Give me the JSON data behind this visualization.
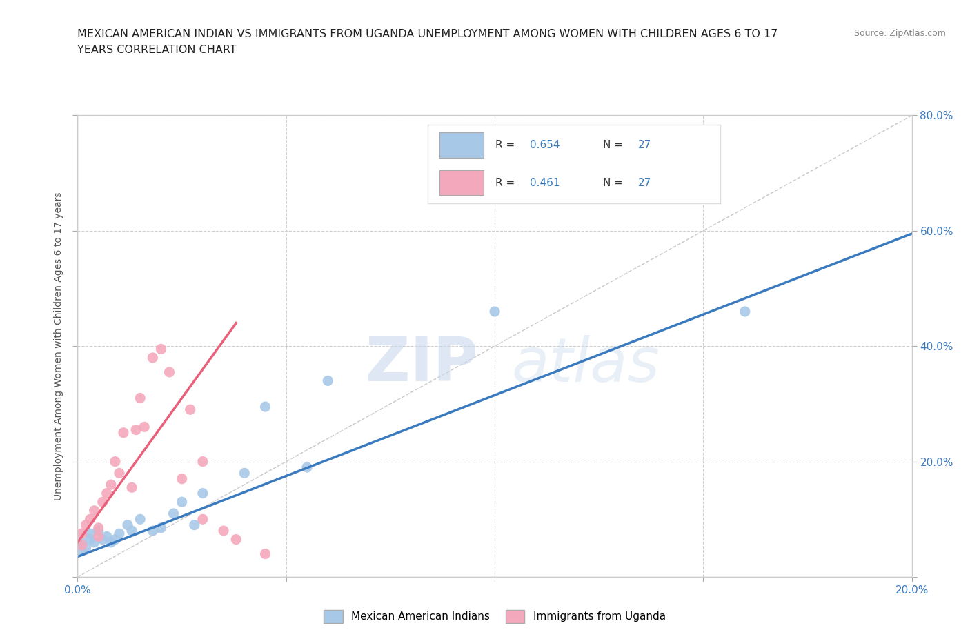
{
  "title_line1": "MEXICAN AMERICAN INDIAN VS IMMIGRANTS FROM UGANDA UNEMPLOYMENT AMONG WOMEN WITH CHILDREN AGES 6 TO 17",
  "title_line2": "YEARS CORRELATION CHART",
  "source": "Source: ZipAtlas.com",
  "ylabel": "Unemployment Among Women with Children Ages 6 to 17 years",
  "xlim": [
    0.0,
    0.2
  ],
  "ylim": [
    0.0,
    0.8
  ],
  "xticks": [
    0.0,
    0.05,
    0.1,
    0.15,
    0.2
  ],
  "yticks": [
    0.0,
    0.2,
    0.4,
    0.6,
    0.8
  ],
  "blue_color": "#a8c8e8",
  "pink_color": "#f4a8bc",
  "blue_line_color": "#3a7abf",
  "pink_line_color": "#e8607a",
  "blue_R": 0.654,
  "pink_R": 0.461,
  "blue_N": 27,
  "pink_N": 27,
  "watermark_zip": "ZIP",
  "watermark_atlas": "atlas",
  "legend_label_blue": "Mexican American Indians",
  "legend_label_pink": "Immigrants from Uganda",
  "blue_scatter_x": [
    0.001,
    0.001,
    0.002,
    0.003,
    0.003,
    0.004,
    0.005,
    0.006,
    0.007,
    0.008,
    0.009,
    0.01,
    0.012,
    0.013,
    0.015,
    0.018,
    0.02,
    0.023,
    0.025,
    0.028,
    0.03,
    0.04,
    0.045,
    0.055,
    0.06,
    0.1,
    0.16
  ],
  "blue_scatter_y": [
    0.045,
    0.06,
    0.05,
    0.065,
    0.075,
    0.06,
    0.08,
    0.065,
    0.07,
    0.06,
    0.065,
    0.075,
    0.09,
    0.08,
    0.1,
    0.08,
    0.085,
    0.11,
    0.13,
    0.09,
    0.145,
    0.18,
    0.295,
    0.19,
    0.34,
    0.46,
    0.46
  ],
  "pink_scatter_x": [
    0.001,
    0.001,
    0.002,
    0.003,
    0.004,
    0.005,
    0.005,
    0.006,
    0.007,
    0.008,
    0.009,
    0.01,
    0.011,
    0.013,
    0.014,
    0.015,
    0.016,
    0.018,
    0.02,
    0.022,
    0.025,
    0.027,
    0.03,
    0.03,
    0.035,
    0.038,
    0.045
  ],
  "pink_scatter_y": [
    0.055,
    0.075,
    0.09,
    0.1,
    0.115,
    0.07,
    0.085,
    0.13,
    0.145,
    0.16,
    0.2,
    0.18,
    0.25,
    0.155,
    0.255,
    0.31,
    0.26,
    0.38,
    0.395,
    0.355,
    0.17,
    0.29,
    0.2,
    0.1,
    0.08,
    0.065,
    0.04
  ],
  "blue_trendline_x": [
    0.0,
    0.2
  ],
  "blue_trendline_y": [
    0.035,
    0.595
  ],
  "pink_trendline_x": [
    0.0,
    0.038
  ],
  "pink_trendline_y": [
    0.06,
    0.44
  ],
  "ref_line_x": [
    0.0,
    0.2
  ],
  "ref_line_y": [
    0.0,
    0.8
  ],
  "background_color": "#ffffff",
  "grid_color": "#d0d0d0"
}
